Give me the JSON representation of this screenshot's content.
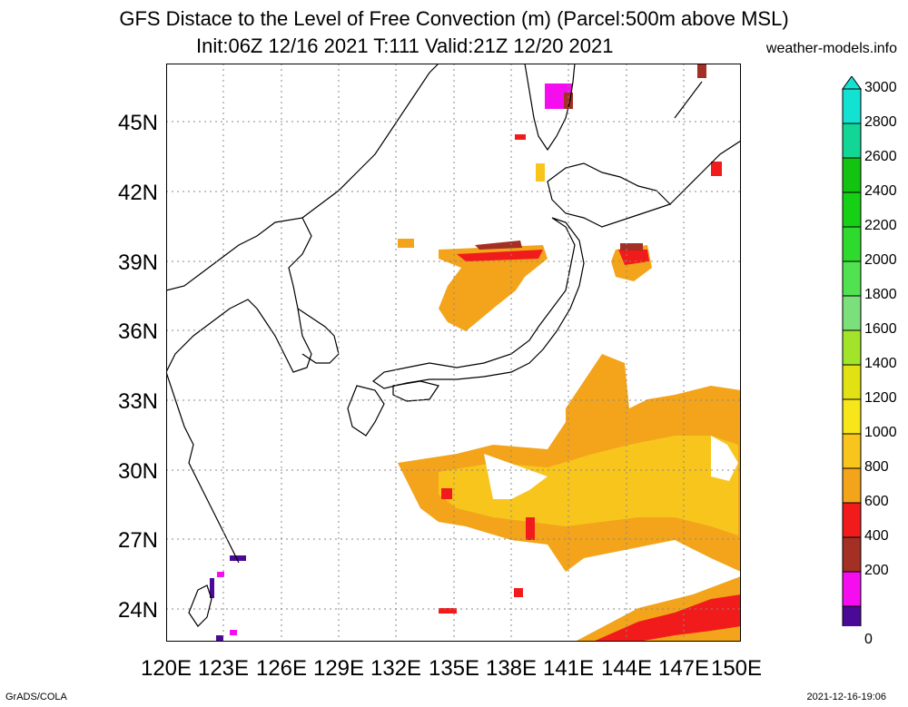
{
  "header": {
    "title": "GFS Distace to the Level of Free Convection (m) (Parcel:500m above MSL)",
    "subtitle": "Init:06Z 12/16 2021 T:111 Valid:21Z 12/20 2021",
    "site": "weather-models.info"
  },
  "map": {
    "lat_labels": [
      "45N",
      "42N",
      "39N",
      "36N",
      "33N",
      "30N",
      "27N",
      "24N"
    ],
    "lon_labels": [
      "120E",
      "123E",
      "126E",
      "129E",
      "132E",
      "135E",
      "138E",
      "141E",
      "144E",
      "147E",
      "150E"
    ]
  },
  "colorbar": {
    "labels": [
      "3000",
      "2800",
      "2600",
      "2400",
      "2200",
      "2000",
      "1800",
      "1600",
      "1400",
      "1200",
      "1000",
      "800",
      "600",
      "400",
      "200",
      "0"
    ],
    "colors": [
      "#13e2d2",
      "#12d696",
      "#12c312",
      "#16d016",
      "#2fda2f",
      "#50e250",
      "#7be07b",
      "#a2e42a",
      "#e1e114",
      "#f6e61a",
      "#f8c51d",
      "#f3a41a",
      "#f21b1b",
      "#a32f25",
      "#f50df0",
      "#4a0a96"
    ]
  },
  "footer": {
    "left": "GrADS/COLA",
    "right": "2021-12-16-19:06"
  }
}
